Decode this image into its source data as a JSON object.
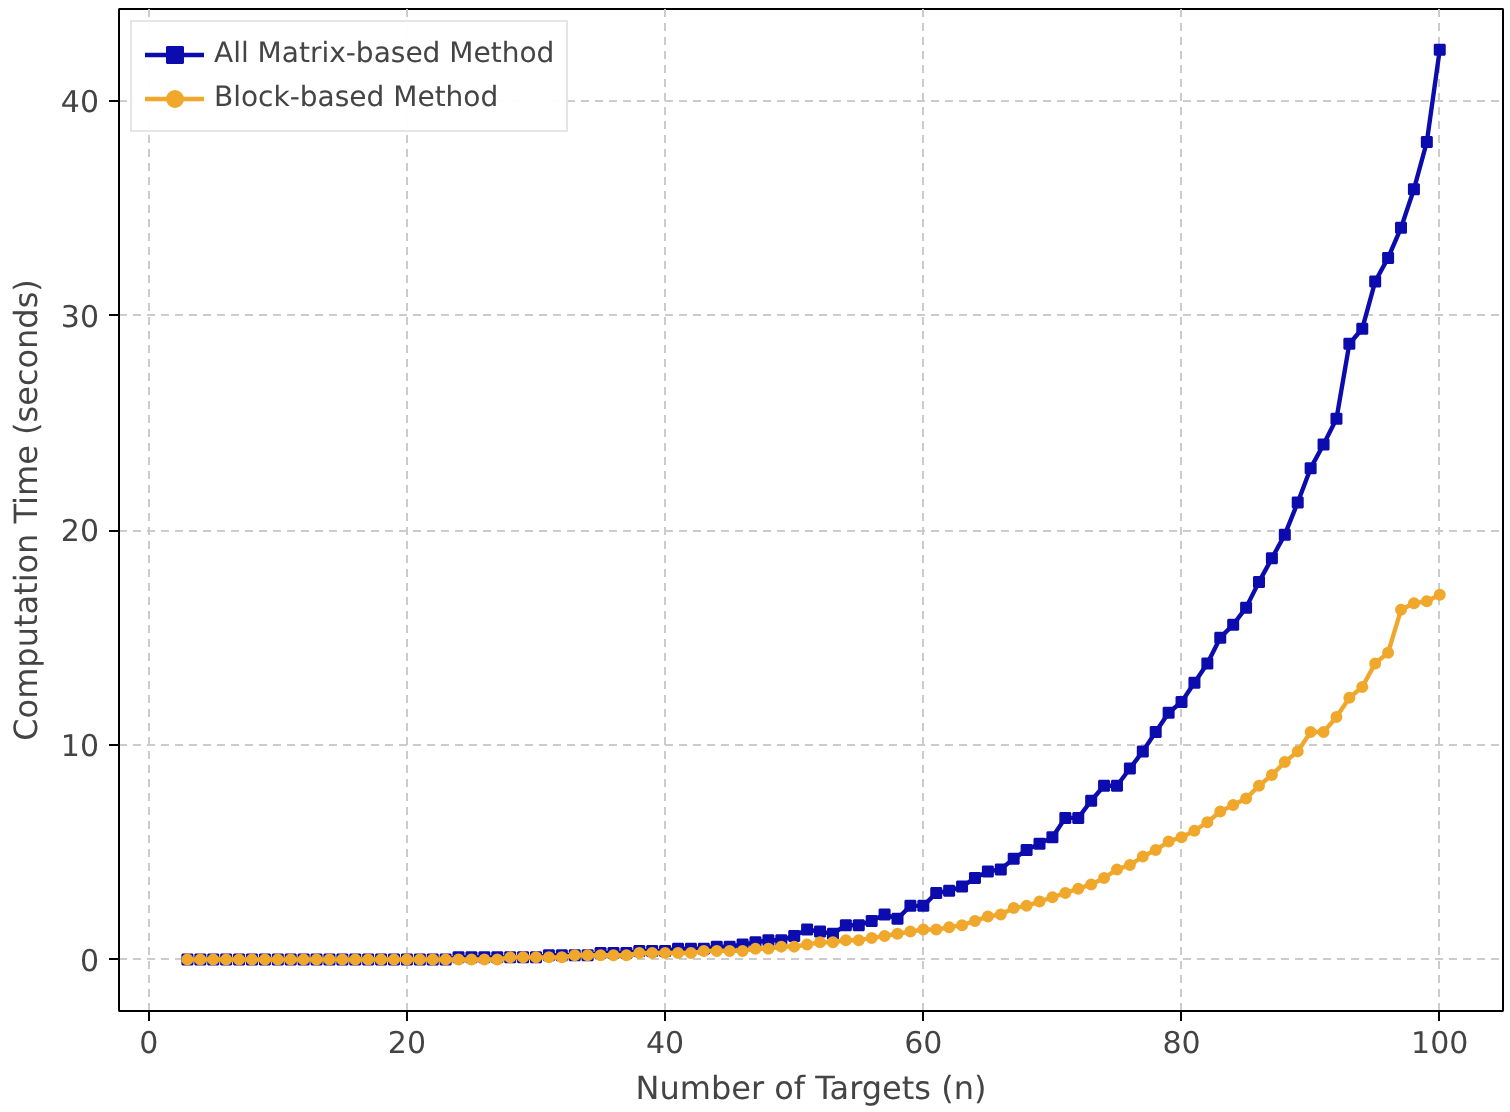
{
  "chart_data": {
    "type": "line",
    "xlabel": "Number of Targets (n)",
    "ylabel": "Computation Time (seconds)",
    "x": [
      3,
      4,
      5,
      6,
      7,
      8,
      9,
      10,
      11,
      12,
      13,
      14,
      15,
      16,
      17,
      18,
      19,
      20,
      21,
      22,
      23,
      24,
      25,
      26,
      27,
      28,
      29,
      30,
      31,
      32,
      33,
      34,
      35,
      36,
      37,
      38,
      39,
      40,
      41,
      42,
      43,
      44,
      45,
      46,
      47,
      48,
      49,
      50,
      51,
      52,
      53,
      54,
      55,
      56,
      57,
      58,
      59,
      60,
      61,
      62,
      63,
      64,
      65,
      66,
      67,
      68,
      69,
      70,
      71,
      72,
      73,
      74,
      75,
      76,
      77,
      78,
      79,
      80,
      81,
      82,
      83,
      84,
      85,
      86,
      87,
      88,
      89,
      90,
      91,
      92,
      93,
      94,
      95,
      96,
      97,
      98,
      99,
      100
    ],
    "series": [
      {
        "name": "All Matrix-based Method",
        "color": "#0c0cae",
        "marker": "square",
        "values": [
          0.0,
          0.0,
          0.0,
          0.0,
          0.0,
          0.0,
          0.0,
          0.0,
          0.0,
          0.0,
          0.0,
          0.0,
          0.0,
          0.0,
          0.0,
          0.0,
          0.0,
          0.0,
          0.0,
          0.0,
          0.0,
          0.1,
          0.1,
          0.1,
          0.1,
          0.1,
          0.1,
          0.1,
          0.2,
          0.2,
          0.2,
          0.2,
          0.3,
          0.3,
          0.3,
          0.4,
          0.4,
          0.4,
          0.5,
          0.5,
          0.5,
          0.6,
          0.6,
          0.7,
          0.8,
          0.9,
          0.9,
          1.1,
          1.4,
          1.3,
          1.2,
          1.6,
          1.6,
          1.8,
          2.1,
          1.9,
          2.5,
          2.5,
          3.1,
          3.2,
          3.4,
          3.8,
          4.1,
          4.2,
          4.7,
          5.1,
          5.4,
          5.7,
          6.6,
          6.6,
          7.4,
          8.1,
          8.1,
          8.9,
          9.7,
          10.6,
          11.5,
          12.0,
          12.9,
          13.8,
          15.0,
          15.6,
          16.4,
          17.6,
          18.7,
          19.8,
          21.3,
          22.9,
          24.0,
          25.2,
          28.7,
          29.4,
          31.6,
          32.7,
          34.1,
          35.9,
          38.1,
          42.4
        ]
      },
      {
        "name": "Block-based Method",
        "color": "#f0a82c",
        "marker": "circle",
        "values": [
          0.0,
          0.0,
          0.0,
          0.0,
          0.0,
          0.0,
          0.0,
          0.0,
          0.0,
          0.0,
          0.0,
          0.0,
          0.0,
          0.0,
          0.0,
          0.0,
          0.0,
          0.0,
          0.0,
          0.0,
          0.0,
          0.0,
          0.0,
          0.0,
          0.0,
          0.1,
          0.1,
          0.1,
          0.1,
          0.1,
          0.2,
          0.2,
          0.2,
          0.2,
          0.2,
          0.3,
          0.3,
          0.3,
          0.3,
          0.3,
          0.4,
          0.4,
          0.4,
          0.4,
          0.5,
          0.5,
          0.6,
          0.6,
          0.7,
          0.8,
          0.8,
          0.9,
          0.9,
          1.0,
          1.1,
          1.2,
          1.3,
          1.4,
          1.4,
          1.5,
          1.6,
          1.8,
          2.0,
          2.1,
          2.4,
          2.5,
          2.7,
          2.9,
          3.1,
          3.3,
          3.5,
          3.8,
          4.2,
          4.4,
          4.8,
          5.1,
          5.5,
          5.7,
          6.0,
          6.4,
          6.9,
          7.2,
          7.5,
          8.1,
          8.6,
          9.2,
          9.7,
          10.6,
          10.6,
          11.3,
          12.2,
          12.7,
          13.8,
          14.3,
          16.3,
          16.6,
          16.7,
          17.0
        ]
      }
    ],
    "xlim": [
      -2.3,
      104.9
    ],
    "ylim": [
      -2.4,
      44.3
    ],
    "xticks": [
      0,
      20,
      40,
      60,
      80,
      100
    ],
    "yticks": [
      0,
      10,
      20,
      30,
      40
    ],
    "grid": true,
    "legend": "top left",
    "line_style": "solid"
  }
}
